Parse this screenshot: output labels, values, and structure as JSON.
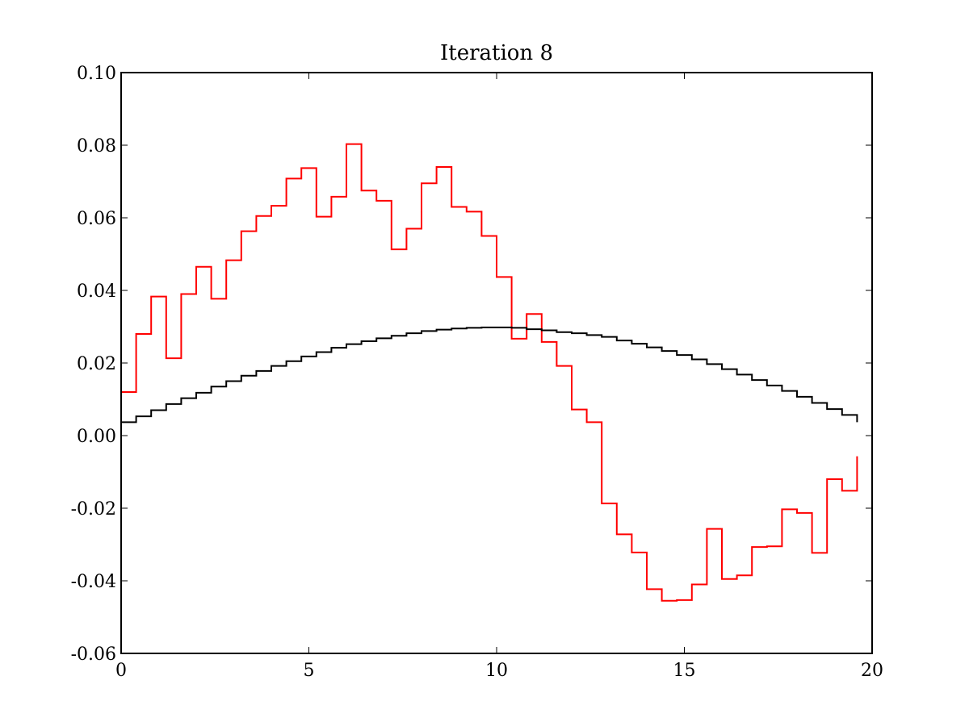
{
  "chart_data": {
    "type": "line",
    "step": "post",
    "title": "Iteration 8",
    "xlabel": "",
    "ylabel": "",
    "xlim": [
      0,
      20
    ],
    "ylim": [
      -0.06,
      0.1
    ],
    "xticks": [
      0,
      5,
      10,
      15,
      20
    ],
    "xtick_labels": [
      "0",
      "5",
      "10",
      "15",
      "20"
    ],
    "yticks": [
      -0.06,
      -0.04,
      -0.02,
      0.0,
      0.02,
      0.04,
      0.06,
      0.08,
      0.1
    ],
    "ytick_labels": [
      "-0.06",
      "-0.04",
      "-0.02",
      "0.00",
      "0.02",
      "0.04",
      "0.06",
      "0.08",
      "0.10"
    ],
    "grid": false,
    "legend": false,
    "x_edges": [
      0,
      0.4,
      0.8,
      1.2,
      1.6,
      2.0,
      2.4,
      2.8,
      3.2,
      3.6,
      4.0,
      4.4,
      4.8,
      5.2,
      5.6,
      6.0,
      6.4,
      6.8,
      7.2,
      7.6,
      8.0,
      8.4,
      8.8,
      9.2,
      9.6,
      10.0,
      10.4,
      10.8,
      11.2,
      11.6,
      12.0,
      12.4,
      12.8,
      13.2,
      13.6,
      14.0,
      14.4,
      14.8,
      15.2,
      15.6,
      16.0,
      16.4,
      16.8,
      17.2,
      17.6,
      18.0,
      18.4,
      18.8,
      19.2,
      19.6
    ],
    "series": [
      {
        "color": "#ff0000",
        "values": [
          0.012,
          0.028,
          0.0383,
          0.0213,
          0.039,
          0.0465,
          0.0377,
          0.0483,
          0.0563,
          0.0605,
          0.0633,
          0.0708,
          0.0737,
          0.0603,
          0.0658,
          0.0803,
          0.0675,
          0.0647,
          0.0513,
          0.057,
          0.0695,
          0.074,
          0.063,
          0.0617,
          0.055,
          0.0437,
          0.0267,
          0.0335,
          0.0258,
          0.0192,
          0.0072,
          0.0037,
          -0.0187,
          -0.0272,
          -0.0322,
          -0.0423,
          -0.0455,
          -0.0453,
          -0.041,
          -0.0257,
          -0.0395,
          -0.0385,
          -0.0307,
          -0.0305,
          -0.0203,
          -0.0213,
          -0.0323,
          -0.012,
          -0.0152
        ],
        "last_value": -0.0057
      },
      {
        "color": "#000000",
        "values": [
          0.0037,
          0.0053,
          0.007,
          0.0087,
          0.0103,
          0.0118,
          0.0135,
          0.015,
          0.0165,
          0.0178,
          0.0192,
          0.0205,
          0.0218,
          0.023,
          0.0242,
          0.0252,
          0.026,
          0.0268,
          0.0275,
          0.0282,
          0.0288,
          0.0292,
          0.0295,
          0.0297,
          0.0298,
          0.0298,
          0.0297,
          0.0293,
          0.029,
          0.0285,
          0.0282,
          0.0277,
          0.0272,
          0.0262,
          0.0253,
          0.0243,
          0.0233,
          0.0222,
          0.021,
          0.0197,
          0.0183,
          0.0168,
          0.0153,
          0.0138,
          0.0123,
          0.0107,
          0.009,
          0.0073,
          0.0057
        ],
        "last_value": 0.0037
      }
    ]
  }
}
